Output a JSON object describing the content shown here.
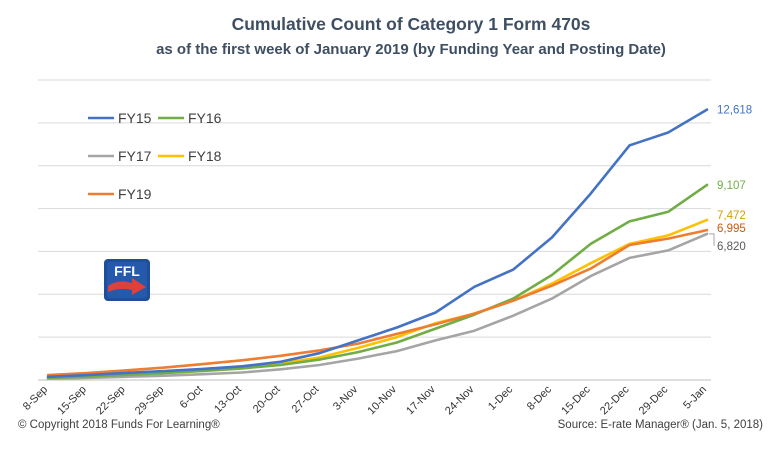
{
  "chart_data": {
    "type": "line",
    "title": "Cumulative Count of Category 1 Form 470s",
    "subtitle": "as of the first week of January 2019 (by Funding Year and Posting Date)",
    "xlabel": "",
    "ylabel": "",
    "categories": [
      "8-Sep",
      "15-Sep",
      "22-Sep",
      "29-Sep",
      "6-Oct",
      "13-Oct",
      "20-Oct",
      "27-Oct",
      "3-Nov",
      "10-Nov",
      "17-Nov",
      "24-Nov",
      "1-Dec",
      "8-Dec",
      "15-Dec",
      "22-Dec",
      "29-Dec",
      "5-Jan"
    ],
    "ylim": [
      0,
      14000
    ],
    "grid": true,
    "legend_position": "top-left",
    "series": [
      {
        "name": "FY15",
        "color": "#4472C4",
        "end_label": "12,618",
        "values": [
          150,
          230,
          330,
          420,
          520,
          640,
          850,
          1250,
          1850,
          2450,
          3150,
          4350,
          5150,
          6650,
          8700,
          10950,
          11550,
          12618
        ]
      },
      {
        "name": "FY16",
        "color": "#70AD47",
        "end_label": "9,107",
        "values": [
          100,
          160,
          240,
          320,
          420,
          540,
          700,
          950,
          1300,
          1750,
          2400,
          3050,
          3800,
          4900,
          6350,
          7400,
          7850,
          9107
        ]
      },
      {
        "name": "FY17",
        "color": "#A5A5A5",
        "end_label": "6,820",
        "values": [
          60,
          100,
          150,
          200,
          270,
          350,
          500,
          700,
          1000,
          1350,
          1850,
          2300,
          3000,
          3800,
          4850,
          5700,
          6050,
          6820
        ]
      },
      {
        "name": "FY18",
        "color": "#FFC000",
        "end_label": "7,472",
        "values": [
          120,
          190,
          280,
          380,
          490,
          610,
          780,
          1050,
          1500,
          2000,
          2650,
          3100,
          3700,
          4500,
          5450,
          6350,
          6750,
          7472
        ]
      },
      {
        "name": "FY19",
        "color": "#ED7D31",
        "end_label": "6,995",
        "values": [
          230,
          320,
          450,
          580,
          740,
          920,
          1130,
          1380,
          1700,
          2150,
          2600,
          3100,
          3700,
          4400,
          5200,
          6300,
          6600,
          6995
        ]
      }
    ]
  },
  "logo": {
    "text": "FFL",
    "colors": {
      "primary": "#1f4e9a",
      "accent": "#e0403a"
    }
  },
  "footer": {
    "copyright": "© Copyright 2018 Funds For Learning®",
    "source": "Source: E-rate Manager® (Jan. 5, 2018)"
  }
}
